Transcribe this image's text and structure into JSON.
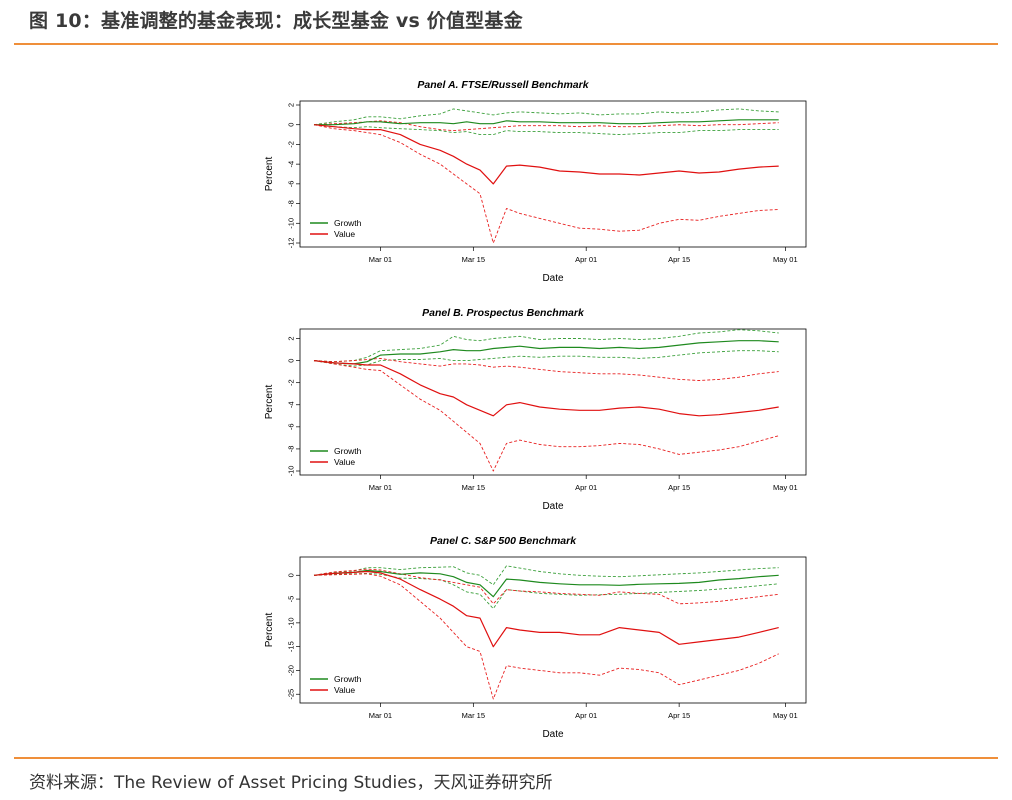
{
  "figure_title": "图 10：基准调整的基金表现：成长型基金 vs 价值型基金",
  "source_note": "资料来源：The Review of Asset Pricing Studies，天风证券研究所",
  "colors": {
    "accent_rule": "#ef8f3a",
    "growth": "#1f8a1f",
    "growth_band": "#3ca03c",
    "value": "#e01010",
    "value_band": "#e82020"
  },
  "chart_data": [
    {
      "type": "line",
      "title": "Panel A. FTSE/Russell Benchmark",
      "xlabel": "Date",
      "ylabel": "Percent",
      "x_ticks": [
        "Mar 01",
        "Mar 15",
        "Apr 01",
        "Apr 15",
        "May 01"
      ],
      "x_tick_days": [
        10,
        24,
        41,
        55,
        71
      ],
      "x_range": [
        0,
        72
      ],
      "y_ticks": [
        2,
        0,
        -2,
        -4,
        -6,
        -8,
        -10,
        -12
      ],
      "ylim": [
        -12,
        2
      ],
      "legend": {
        "position": "bottom-left",
        "entries": [
          "Growth",
          "Value"
        ]
      },
      "x": [
        0,
        3,
        6,
        8,
        10,
        13,
        16,
        19,
        21,
        23,
        25,
        27,
        29,
        31,
        34,
        37,
        40,
        43,
        46,
        49,
        52,
        55,
        58,
        61,
        64,
        67,
        70
      ],
      "series": [
        {
          "name": "Growth",
          "style": "solid",
          "values": [
            0,
            0,
            0.1,
            0.3,
            0.3,
            0.1,
            0.2,
            0.2,
            0.1,
            0.3,
            0.1,
            0.1,
            0.4,
            0.3,
            0.3,
            0.2,
            0.2,
            0.2,
            0.1,
            0.1,
            0.2,
            0.3,
            0.3,
            0.4,
            0.5,
            0.5,
            0.5
          ]
        },
        {
          "name": "Growth band upper",
          "style": "dashed",
          "values": [
            0,
            0.3,
            0.5,
            0.8,
            0.8,
            0.6,
            0.9,
            1.1,
            1.6,
            1.4,
            1.2,
            1.0,
            1.2,
            1.3,
            1.2,
            1.1,
            1.2,
            1.0,
            1.1,
            1.1,
            1.3,
            1.2,
            1.3,
            1.5,
            1.6,
            1.4,
            1.3
          ]
        },
        {
          "name": "Growth band lower",
          "style": "dashed",
          "values": [
            0,
            -0.2,
            -0.3,
            -0.2,
            -0.3,
            -0.4,
            -0.5,
            -0.6,
            -0.8,
            -0.7,
            -1.0,
            -1.0,
            -0.6,
            -0.7,
            -0.7,
            -0.8,
            -0.8,
            -0.9,
            -1.0,
            -0.9,
            -0.8,
            -0.8,
            -0.6,
            -0.6,
            -0.5,
            -0.5,
            -0.5
          ]
        },
        {
          "name": "Value",
          "style": "solid",
          "values": [
            0,
            -0.2,
            -0.4,
            -0.5,
            -0.5,
            -1.0,
            -2.0,
            -2.6,
            -3.2,
            -4.0,
            -4.6,
            -6.0,
            -4.2,
            -4.1,
            -4.3,
            -4.7,
            -4.8,
            -5.0,
            -5.0,
            -5.1,
            -4.9,
            -4.7,
            -4.9,
            -4.8,
            -4.5,
            -4.3,
            -4.2
          ]
        },
        {
          "name": "Value band upper",
          "style": "dashed",
          "values": [
            0,
            0.1,
            0.2,
            0.3,
            0.4,
            0.2,
            -0.2,
            -0.5,
            -0.6,
            -0.5,
            -0.4,
            -0.3,
            -0.2,
            -0.1,
            -0.1,
            -0.1,
            -0.2,
            -0.1,
            -0.2,
            -0.2,
            -0.1,
            0.0,
            -0.1,
            0.0,
            0.0,
            0.1,
            0.2
          ]
        },
        {
          "name": "Value band lower",
          "style": "dashed",
          "values": [
            0,
            -0.4,
            -0.6,
            -0.8,
            -1.0,
            -1.8,
            -3.0,
            -4.0,
            -5.0,
            -6.0,
            -7.0,
            -12.0,
            -8.5,
            -9.0,
            -9.5,
            -10.0,
            -10.5,
            -10.6,
            -10.8,
            -10.7,
            -10.0,
            -9.6,
            -9.7,
            -9.3,
            -9.0,
            -8.7,
            -8.6
          ]
        }
      ]
    },
    {
      "type": "line",
      "title": "Panel B. Prospectus Benchmark",
      "xlabel": "Date",
      "ylabel": "Percent",
      "x_ticks": [
        "Mar 01",
        "Mar 15",
        "Apr 01",
        "Apr 15",
        "May 01"
      ],
      "x_tick_days": [
        10,
        24,
        41,
        55,
        71
      ],
      "x_range": [
        0,
        72
      ],
      "y_ticks": [
        2,
        0,
        -2,
        -4,
        -6,
        -8,
        -10
      ],
      "ylim": [
        -10,
        2.5
      ],
      "legend": {
        "position": "bottom-left",
        "entries": [
          "Growth",
          "Value"
        ]
      },
      "x": [
        0,
        3,
        6,
        8,
        10,
        13,
        16,
        19,
        21,
        23,
        25,
        27,
        29,
        31,
        34,
        37,
        40,
        43,
        46,
        49,
        52,
        55,
        58,
        61,
        64,
        67,
        70
      ],
      "series": [
        {
          "name": "Growth",
          "style": "solid",
          "values": [
            0,
            -0.2,
            -0.3,
            -0.1,
            0.5,
            0.6,
            0.6,
            0.8,
            1.0,
            0.9,
            0.9,
            1.1,
            1.2,
            1.3,
            1.1,
            1.2,
            1.2,
            1.1,
            1.2,
            1.1,
            1.2,
            1.4,
            1.6,
            1.7,
            1.8,
            1.8,
            1.7
          ]
        },
        {
          "name": "Growth band upper",
          "style": "dashed",
          "values": [
            0,
            -0.1,
            0.0,
            0.3,
            0.9,
            1.0,
            1.1,
            1.4,
            2.2,
            1.9,
            1.8,
            2.0,
            2.1,
            2.2,
            1.9,
            2.0,
            2.0,
            1.9,
            2.0,
            1.9,
            2.0,
            2.2,
            2.5,
            2.6,
            2.8,
            2.7,
            2.5
          ]
        },
        {
          "name": "Growth band lower",
          "style": "dashed",
          "values": [
            0,
            -0.3,
            -0.5,
            -0.4,
            0.0,
            0.1,
            0.1,
            0.2,
            0.0,
            0.0,
            0.1,
            0.2,
            0.3,
            0.4,
            0.3,
            0.4,
            0.4,
            0.3,
            0.3,
            0.2,
            0.3,
            0.5,
            0.7,
            0.8,
            0.9,
            0.9,
            0.8
          ]
        },
        {
          "name": "Value",
          "style": "solid",
          "values": [
            0,
            -0.2,
            -0.3,
            -0.4,
            -0.4,
            -1.2,
            -2.2,
            -3.0,
            -3.3,
            -4.0,
            -4.5,
            -5.0,
            -4.0,
            -3.8,
            -4.2,
            -4.4,
            -4.5,
            -4.5,
            -4.3,
            -4.2,
            -4.4,
            -4.8,
            -5.0,
            -4.9,
            -4.7,
            -4.5,
            -4.2
          ]
        },
        {
          "name": "Value band upper",
          "style": "dashed",
          "values": [
            0,
            -0.1,
            0.0,
            0.1,
            0.2,
            -0.1,
            -0.3,
            -0.5,
            -0.3,
            -0.3,
            -0.4,
            -0.6,
            -0.5,
            -0.6,
            -0.8,
            -1.0,
            -1.1,
            -1.2,
            -1.2,
            -1.3,
            -1.5,
            -1.7,
            -1.8,
            -1.7,
            -1.5,
            -1.2,
            -1.0
          ]
        },
        {
          "name": "Value band lower",
          "style": "dashed",
          "values": [
            0,
            -0.3,
            -0.6,
            -0.8,
            -0.9,
            -2.2,
            -3.5,
            -4.5,
            -5.5,
            -6.5,
            -7.5,
            -10.0,
            -7.5,
            -7.2,
            -7.6,
            -7.8,
            -7.8,
            -7.7,
            -7.5,
            -7.6,
            -8.0,
            -8.5,
            -8.3,
            -8.1,
            -7.8,
            -7.3,
            -6.8
          ]
        }
      ]
    },
    {
      "type": "line",
      "title": "Panel C. S&P 500 Benchmark",
      "xlabel": "Date",
      "ylabel": "Percent",
      "x_ticks": [
        "Mar 01",
        "Mar 15",
        "Apr 01",
        "Apr 15",
        "May 01"
      ],
      "x_tick_days": [
        10,
        24,
        41,
        55,
        71
      ],
      "x_range": [
        0,
        72
      ],
      "y_ticks": [
        0,
        -5,
        -10,
        -15,
        -20,
        -25
      ],
      "ylim": [
        -26,
        3
      ],
      "legend": {
        "position": "bottom-left",
        "entries": [
          "Growth",
          "Value"
        ]
      },
      "x": [
        0,
        3,
        6,
        8,
        10,
        13,
        16,
        19,
        21,
        23,
        25,
        27,
        29,
        31,
        34,
        37,
        40,
        43,
        46,
        49,
        52,
        55,
        58,
        61,
        64,
        67,
        70
      ],
      "series": [
        {
          "name": "Growth",
          "style": "solid",
          "values": [
            0,
            0.4,
            0.6,
            1.0,
            0.8,
            0.2,
            0.5,
            0.3,
            -0.3,
            -1.5,
            -2.0,
            -4.5,
            -0.8,
            -1.0,
            -1.5,
            -1.8,
            -2.0,
            -2.0,
            -2.1,
            -1.9,
            -1.8,
            -1.7,
            -1.5,
            -1.0,
            -0.7,
            -0.3,
            0.0
          ]
        },
        {
          "name": "Growth band upper",
          "style": "dashed",
          "values": [
            0,
            0.6,
            0.9,
            1.6,
            1.6,
            1.2,
            1.6,
            1.7,
            1.8,
            0.5,
            0.0,
            -2.0,
            2.0,
            1.5,
            0.8,
            0.3,
            0.0,
            -0.2,
            -0.3,
            -0.1,
            0.1,
            0.3,
            0.5,
            0.8,
            1.1,
            1.4,
            1.6
          ]
        },
        {
          "name": "Growth band lower",
          "style": "dashed",
          "values": [
            0,
            0.2,
            0.3,
            0.4,
            0.2,
            -0.6,
            -0.7,
            -0.9,
            -2.0,
            -3.5,
            -4.0,
            -7.0,
            -3.0,
            -3.3,
            -3.8,
            -4.0,
            -4.2,
            -4.1,
            -4.0,
            -3.8,
            -3.6,
            -3.4,
            -3.2,
            -2.9,
            -2.6,
            -2.2,
            -1.8
          ]
        },
        {
          "name": "Value",
          "style": "solid",
          "values": [
            0,
            0.4,
            0.6,
            0.8,
            0.5,
            -0.8,
            -3.0,
            -5.0,
            -6.5,
            -8.5,
            -9.0,
            -15.0,
            -11.0,
            -11.5,
            -12.0,
            -12.0,
            -12.5,
            -12.5,
            -11.0,
            -11.5,
            -12.0,
            -14.5,
            -14.0,
            -13.5,
            -13.0,
            -12.0,
            -11.0
          ]
        },
        {
          "name": "Value band upper",
          "style": "dashed",
          "values": [
            0,
            0.7,
            1.0,
            1.3,
            1.1,
            0.3,
            -0.5,
            -1.0,
            -1.5,
            -2.0,
            -2.5,
            -6.0,
            -3.0,
            -3.3,
            -3.5,
            -3.8,
            -4.0,
            -4.2,
            -3.5,
            -3.8,
            -4.0,
            -6.0,
            -5.8,
            -5.5,
            -5.0,
            -4.5,
            -4.0
          ]
        },
        {
          "name": "Value band lower",
          "style": "dashed",
          "values": [
            0,
            0.1,
            0.2,
            0.3,
            -0.2,
            -2.0,
            -5.5,
            -9.0,
            -12.0,
            -15.0,
            -16.0,
            -26.0,
            -19.0,
            -19.5,
            -20.0,
            -20.5,
            -20.5,
            -21.0,
            -19.5,
            -19.8,
            -20.5,
            -23.0,
            -22.0,
            -21.0,
            -20.0,
            -18.5,
            -16.5
          ]
        }
      ]
    }
  ]
}
